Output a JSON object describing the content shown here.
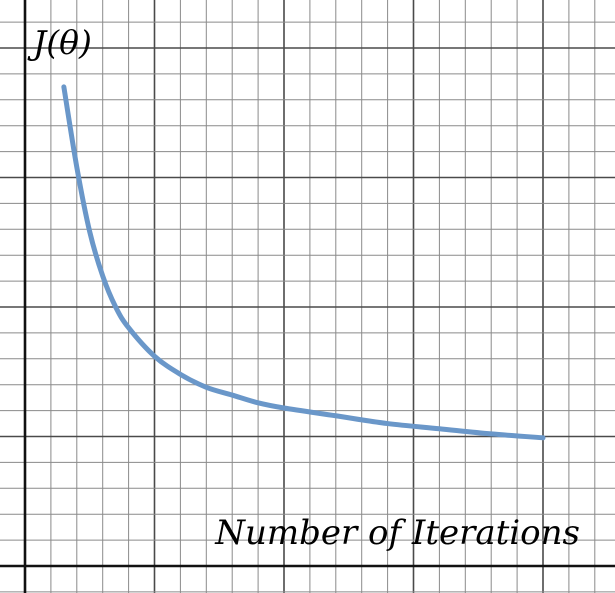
{
  "chart_data": {
    "type": "line",
    "title": "",
    "xlabel": "Number of Iterations",
    "ylabel": "J(θ)",
    "xlim": [
      0,
      22
    ],
    "ylim": [
      0,
      21
    ],
    "grid": true,
    "colors": {
      "series": "#6a97c9",
      "major_grid": "#4a4a4a",
      "minor_grid": "#8a8a8a",
      "axis": "#111111"
    },
    "series": [
      {
        "x": [
          1.5,
          2,
          2.5,
          3,
          3.5,
          4,
          5,
          6,
          7,
          8,
          9,
          10,
          12,
          14,
          16,
          18,
          20
        ],
        "y": [
          18.5,
          15.4,
          12.9,
          11.2,
          10.0,
          9.2,
          8.1,
          7.4,
          6.9,
          6.6,
          6.3,
          6.1,
          5.8,
          5.5,
          5.3,
          5.1,
          4.95
        ]
      }
    ]
  }
}
